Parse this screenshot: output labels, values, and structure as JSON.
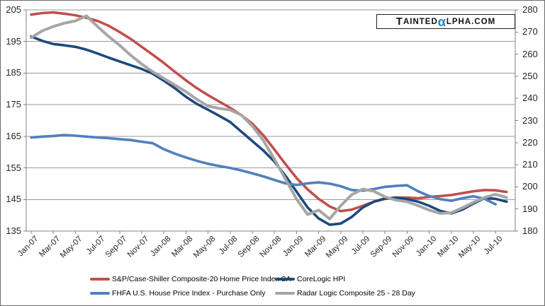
{
  "logo": {
    "leading": "T",
    "body": "AINTED",
    "alpha": "α",
    "tail": "LPHA.COM",
    "alpha_color": "#1f87c4",
    "text_color": "#111111"
  },
  "colors": {
    "background": "#ffffff",
    "gridline": "#9a9a9a",
    "axis": "#808080",
    "tick_label": "#262626"
  },
  "chart_data": {
    "type": "line",
    "title": "",
    "xlabel": "",
    "ylabel_left": "",
    "ylabel_right": "",
    "grid": "horizontal",
    "legend_position": "bottom",
    "left_axis": {
      "min": 135,
      "max": 205,
      "tick_step": 10,
      "ticks": [
        205,
        195,
        185,
        175,
        165,
        155,
        145,
        135
      ]
    },
    "right_axis": {
      "min": 180,
      "max": 280,
      "tick_step": 10,
      "ticks": [
        280,
        270,
        260,
        250,
        240,
        230,
        220,
        210,
        200,
        190,
        180
      ]
    },
    "xtick_labels": [
      "Jan-07",
      "Mar-07",
      "May-07",
      "Jul-07",
      "Sep-07",
      "Nov-07",
      "Jan-08",
      "Mar-08",
      "May-08",
      "Jul-08",
      "Sep-08",
      "Nov-08",
      "Jan-09",
      "Mar-09",
      "May-09",
      "Jul-09",
      "Sep-09",
      "Nov-09",
      "Jan-10",
      "Mar-10",
      "May-10",
      "Jul-10"
    ],
    "x_months": [
      "Jan-07",
      "Feb-07",
      "Mar-07",
      "Apr-07",
      "May-07",
      "Jun-07",
      "Jul-07",
      "Aug-07",
      "Sep-07",
      "Oct-07",
      "Nov-07",
      "Dec-07",
      "Jan-08",
      "Feb-08",
      "Mar-08",
      "Apr-08",
      "May-08",
      "Jun-08",
      "Jul-08",
      "Aug-08",
      "Sep-08",
      "Oct-08",
      "Nov-08",
      "Dec-08",
      "Jan-09",
      "Feb-09",
      "Mar-09",
      "Apr-09",
      "May-09",
      "Jun-09",
      "Jul-09",
      "Aug-09",
      "Sep-09",
      "Oct-09",
      "Nov-09",
      "Dec-09",
      "Jan-10",
      "Feb-10",
      "Mar-10",
      "Apr-10",
      "May-10",
      "Jun-10",
      "Jul-10",
      "Aug-10"
    ],
    "series": [
      {
        "name": "S&P/Case-Shiller Composite-20 Home Price Index SA",
        "color": "#C0504D",
        "axis": "left",
        "stroke_width": 3.6,
        "values": [
          203.5,
          204.0,
          204.2,
          203.8,
          203.3,
          202.5,
          201.5,
          200.0,
          198.0,
          195.8,
          193.3,
          190.8,
          188.2,
          185.4,
          182.7,
          180.2,
          178.0,
          176.0,
          174.0,
          171.7,
          169.0,
          165.3,
          160.8,
          156.2,
          151.8,
          148.2,
          145.2,
          142.8,
          141.3,
          141.8,
          143.0,
          144.3,
          145.2,
          145.6,
          145.6,
          145.4,
          145.8,
          146.1,
          146.4,
          147.0,
          147.6,
          148.0,
          147.9,
          147.4
        ]
      },
      {
        "name": "CoreLogic HPI",
        "color": "#1F497D",
        "axis": "left",
        "stroke_width": 3.6,
        "values": [
          196.6,
          195.2,
          194.2,
          193.8,
          193.3,
          192.4,
          191.2,
          189.9,
          188.7,
          187.5,
          186.3,
          184.8,
          182.6,
          180.2,
          177.5,
          175.2,
          173.4,
          171.5,
          169.5,
          166.5,
          163.5,
          160.5,
          157.0,
          152.5,
          147.5,
          142.5,
          139.0,
          137.0,
          137.4,
          139.5,
          142.5,
          144.3,
          145.3,
          145.6,
          145.1,
          144.3,
          143.0,
          141.4,
          140.6,
          141.8,
          143.7,
          145.5,
          145.2,
          144.3
        ]
      },
      {
        "name": "FHFA U.S. House Price Index - Purchase Only",
        "color": "#4F81BD",
        "axis": "left",
        "stroke_width": 3.6,
        "values": [
          164.6,
          164.9,
          165.1,
          165.4,
          165.2,
          164.9,
          164.6,
          164.4,
          164.1,
          163.8,
          163.3,
          162.8,
          160.9,
          159.5,
          158.3,
          157.2,
          156.3,
          155.6,
          155.0,
          154.2,
          153.3,
          152.3,
          151.2,
          150.1,
          149.6,
          150.1,
          150.4,
          150.0,
          149.2,
          148.0,
          147.8,
          148.3,
          149.0,
          149.3,
          149.5,
          147.6,
          146.1,
          145.1,
          144.6,
          145.4,
          146.0,
          145.2,
          143.5
        ]
      },
      {
        "name": "Radar Logic Composite 25 - 28 Day",
        "color": "#A6A6A6",
        "axis": "right",
        "stroke_width": 4.0,
        "values": [
          267.5,
          270.5,
          272.5,
          274.0,
          275.0,
          277.3,
          272.5,
          268.0,
          264.0,
          259.5,
          255.5,
          252.0,
          249.0,
          246.0,
          243.0,
          239.5,
          236.5,
          235.5,
          234.8,
          232.5,
          227.5,
          221.0,
          212.5,
          203.5,
          194.5,
          187.5,
          189.5,
          185.5,
          191.5,
          196.5,
          199.0,
          198.0,
          195.5,
          194.0,
          193.3,
          191.5,
          189.5,
          188.0,
          188.3,
          190.5,
          193.0,
          195.2,
          196.6,
          195.2
        ]
      }
    ]
  }
}
